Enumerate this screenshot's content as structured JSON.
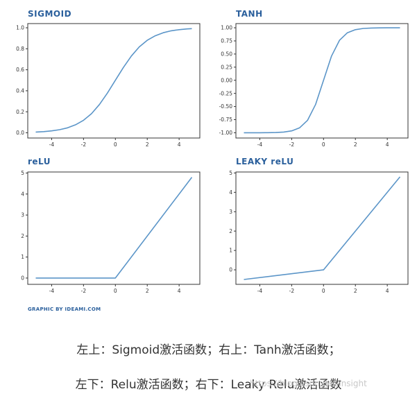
{
  "chart_data": [
    {
      "type": "line",
      "title": "SIGMOID",
      "x": [
        -5,
        -4.5,
        -4,
        -3.5,
        -3,
        -2.5,
        -2,
        -1.5,
        -1,
        -0.5,
        0,
        0.5,
        1,
        1.5,
        2,
        2.5,
        3,
        3.5,
        4,
        4.5,
        4.8
      ],
      "y": [
        0.007,
        0.011,
        0.018,
        0.029,
        0.047,
        0.076,
        0.119,
        0.182,
        0.269,
        0.378,
        0.5,
        0.622,
        0.731,
        0.818,
        0.881,
        0.924,
        0.953,
        0.971,
        0.982,
        0.989,
        0.992
      ],
      "xticks": [
        "-4",
        "-2",
        "0",
        "2",
        "4"
      ],
      "yticks": [
        "0.0",
        "0.2",
        "0.4",
        "0.6",
        "0.8",
        "1.0"
      ],
      "xlim": [
        -5.5,
        5.3
      ],
      "ylim": [
        -0.05,
        1.04
      ]
    },
    {
      "type": "line",
      "title": "TANH",
      "x": [
        -5,
        -4.5,
        -4,
        -3.5,
        -3,
        -2.5,
        -2,
        -1.5,
        -1,
        -0.5,
        0,
        0.5,
        1,
        1.5,
        2,
        2.5,
        3,
        3.5,
        4,
        4.5,
        4.8
      ],
      "y": [
        -1.0,
        -1.0,
        -0.999,
        -0.998,
        -0.995,
        -0.987,
        -0.964,
        -0.905,
        -0.762,
        -0.462,
        0.0,
        0.462,
        0.762,
        0.905,
        0.964,
        0.987,
        0.995,
        0.998,
        0.999,
        1.0,
        1.0
      ],
      "xticks": [
        "-4",
        "-2",
        "0",
        "2",
        "4"
      ],
      "yticks": [
        "-1.00",
        "-0.75",
        "-0.50",
        "-0.25",
        "0.00",
        "0.25",
        "0.50",
        "0.75",
        "1.00"
      ],
      "xlim": [
        -5.5,
        5.3
      ],
      "ylim": [
        -1.1,
        1.08
      ]
    },
    {
      "type": "line",
      "title": "reLU",
      "x": [
        -5,
        0,
        4.8
      ],
      "y": [
        0,
        0,
        4.8
      ],
      "xticks": [
        "-4",
        "-2",
        "0",
        "2",
        "4"
      ],
      "yticks": [
        "0",
        "1",
        "2",
        "3",
        "4",
        "5"
      ],
      "xlim": [
        -5.5,
        5.3
      ],
      "ylim": [
        -0.3,
        5.05
      ]
    },
    {
      "type": "line",
      "title": "LEAKY reLU",
      "x": [
        -5,
        0,
        4.8
      ],
      "y": [
        -0.5,
        0,
        4.8
      ],
      "xticks": [
        "-4",
        "-2",
        "0",
        "2",
        "4"
      ],
      "yticks": [
        "0",
        "1",
        "2",
        "3",
        "4",
        "5"
      ],
      "xlim": [
        -5.5,
        5.3
      ],
      "ylim": [
        -0.75,
        5.05
      ]
    }
  ],
  "line_color": "#5b95c8",
  "credit": "GRAPHIC BY IDEAMI.COM",
  "captions": [
    "左上：Sigmoid激活函数；右上：Tanh激活函数；",
    "左下：Relu激活函数；右下：Leaky Relu激活函数"
  ],
  "watermark": "https://blog.csdn.net/insight"
}
